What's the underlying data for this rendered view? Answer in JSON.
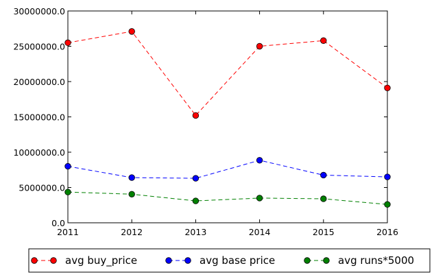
{
  "chart_data": {
    "type": "line",
    "x": [
      2011,
      2012,
      2013,
      2014,
      2015,
      2016
    ],
    "x_tick_labels": [
      "2011",
      "2012",
      "2013",
      "2014",
      "2015",
      "2016"
    ],
    "y_tick_labels": [
      "0.0",
      "5000000.0",
      "10000000.0",
      "15000000.0",
      "20000000.0",
      "25000000.0",
      "30000000.0"
    ],
    "y_ticks": [
      0,
      5000000,
      10000000,
      15000000,
      20000000,
      25000000,
      30000000
    ],
    "xlim": [
      2011,
      2016
    ],
    "ylim": [
      0,
      30000000
    ],
    "grid": false,
    "legend_placement": "below",
    "series": [
      {
        "name": "avg buy_price",
        "color": "#ff0000",
        "values": [
          25500000,
          27100000,
          15200000,
          25000000,
          25800000,
          19100000
        ]
      },
      {
        "name": "avg base price",
        "color": "#0000ff",
        "values": [
          8000000,
          6400000,
          6300000,
          8850000,
          6750000,
          6500000
        ]
      },
      {
        "name": "avg runs*5000",
        "color": "#008000",
        "values": [
          4350000,
          4050000,
          3100000,
          3500000,
          3400000,
          2600000
        ]
      }
    ]
  }
}
